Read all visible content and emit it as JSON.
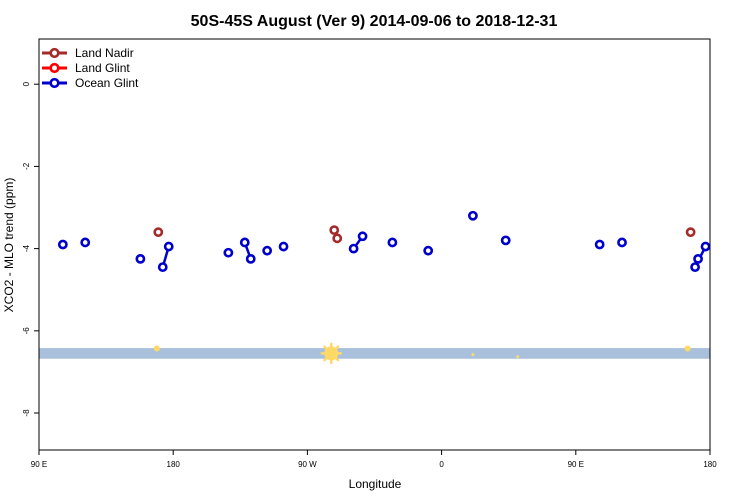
{
  "chart_data": {
    "type": "scatter",
    "title": "50S-45S August (Ver 9)   2014-09-06 to 2018-12-31",
    "xlabel": "Longitude",
    "ylabel": "XCO2 - MLO trend (ppm)",
    "xlim": [
      90,
      540
    ],
    "ylim": [
      -8.9,
      1.1
    ],
    "x_ticks": [
      {
        "value": 90,
        "label": "90 E"
      },
      {
        "value": 180,
        "label": "180"
      },
      {
        "value": 270,
        "label": "90 W"
      },
      {
        "value": 360,
        "label": "0"
      },
      {
        "value": 450,
        "label": "90 E"
      },
      {
        "value": 540,
        "label": "180"
      }
    ],
    "y_ticks": [
      {
        "value": 0,
        "label": "0"
      },
      {
        "value": -2,
        "label": "-2"
      },
      {
        "value": -4,
        "label": "-4"
      },
      {
        "value": -6,
        "label": "-6"
      },
      {
        "value": -8,
        "label": "-8"
      }
    ],
    "legend_position": "top-left",
    "series": [
      {
        "name": "Land Nadir",
        "color": "#a52a2a",
        "segments": [
          [
            [
              170,
              -3.6
            ]
          ],
          [
            [
              288,
              -3.55
            ],
            [
              290,
              -3.75
            ]
          ],
          [
            [
              527,
              -3.6
            ]
          ]
        ]
      },
      {
        "name": "Land Glint",
        "color": "#ff0000",
        "segments": []
      },
      {
        "name": "Ocean Glint",
        "color": "#0000cc",
        "segments": [
          [
            [
              106,
              -3.9
            ]
          ],
          [
            [
              121,
              -3.85
            ]
          ],
          [
            [
              158,
              -4.25
            ]
          ],
          [
            [
              173,
              -4.45
            ],
            [
              177,
              -3.95
            ]
          ],
          [
            [
              217,
              -4.1
            ]
          ],
          [
            [
              228,
              -3.85
            ],
            [
              232,
              -4.25
            ]
          ],
          [
            [
              243,
              -4.05
            ]
          ],
          [
            [
              254,
              -3.95
            ]
          ],
          [
            [
              301,
              -4.0
            ],
            [
              307,
              -3.7
            ]
          ],
          [
            [
              327,
              -3.85
            ]
          ],
          [
            [
              351,
              -4.05
            ]
          ],
          [
            [
              381,
              -3.2
            ]
          ],
          [
            [
              403,
              -3.8
            ]
          ],
          [
            [
              466,
              -3.9
            ]
          ],
          [
            [
              481,
              -3.85
            ]
          ],
          [
            [
              532,
              -4.25
            ]
          ],
          [
            [
              530,
              -4.45
            ],
            [
              537,
              -3.95
            ]
          ]
        ]
      }
    ],
    "band": {
      "y_top": -6.42,
      "y_bottom": -6.68,
      "color": "#a9c0dc"
    },
    "band_markers": {
      "color": "#ffd966",
      "points": [
        {
          "x": 169,
          "y": -6.43,
          "size": 3
        },
        {
          "x": 286,
          "y": -6.55,
          "size": 7
        },
        {
          "x": 381,
          "y": -6.58,
          "size": 1.5
        },
        {
          "x": 411,
          "y": -6.63,
          "size": 1.5
        },
        {
          "x": 525,
          "y": -6.43,
          "size": 3
        }
      ]
    }
  }
}
